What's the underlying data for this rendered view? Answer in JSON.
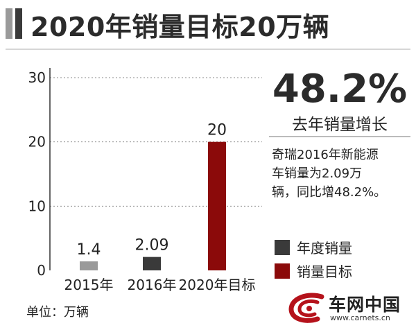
{
  "header": {
    "title": "2020年销量目标20万辆"
  },
  "highlight": {
    "value": "48.2%",
    "caption": "去年销量增长"
  },
  "note": {
    "lines": [
      "奇瑞2016年新能源",
      "车销量为2.09万",
      "辆，同比增48.2%。"
    ]
  },
  "legend": [
    {
      "label": "年度销量",
      "color": "#3a3a3a"
    },
    {
      "label": "销量目标",
      "color": "#8b0a0a"
    }
  ],
  "unit_label": "单位：万辆",
  "logo": {
    "text": "车网中国",
    "url": "www.carnets.cn"
  },
  "colors": {
    "gray_bar": "#9a9a9a",
    "dark_bar": "#3a3a3a",
    "red_bar": "#8b0a0a"
  },
  "chart_data": {
    "type": "bar",
    "title": "2020年销量目标20万辆",
    "ylabel": "",
    "xlabel": "",
    "ylim": [
      0,
      30
    ],
    "yticks": [
      0,
      10,
      20,
      30
    ],
    "grid": true,
    "legend_position": "right",
    "categories": [
      "2015年",
      "2016年",
      "2020年目标"
    ],
    "values": [
      1.4,
      2.09,
      20
    ],
    "data_labels": [
      "1.4",
      "2.09",
      "20"
    ],
    "bar_colors": [
      "#9a9a9a",
      "#3a3a3a",
      "#8b0a0a"
    ]
  }
}
